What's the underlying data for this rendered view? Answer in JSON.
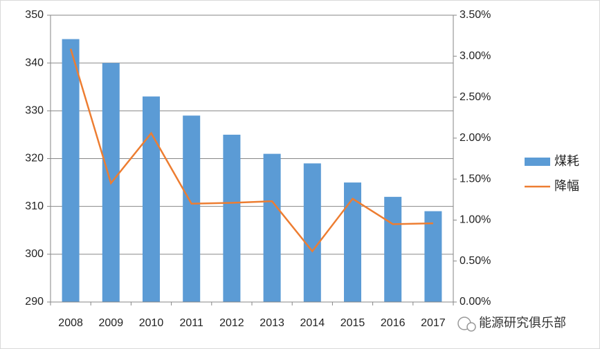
{
  "chart_data": {
    "type": "bar_line",
    "categories": [
      "2008",
      "2009",
      "2010",
      "2011",
      "2012",
      "2013",
      "2014",
      "2015",
      "2016",
      "2017"
    ],
    "series": [
      {
        "name": "煤耗",
        "type": "bar",
        "color": "#5b9bd5",
        "values": [
          345,
          340,
          333,
          329,
          325,
          321,
          319,
          315,
          312,
          309
        ]
      },
      {
        "name": "降幅",
        "type": "line",
        "axis": "y2",
        "color": "#ed7d31",
        "values": [
          3.09,
          1.45,
          2.06,
          1.2,
          1.21,
          1.23,
          0.62,
          1.26,
          0.95,
          0.96
        ]
      }
    ],
    "ylim": [
      290,
      350
    ],
    "yticks": [
      290,
      300,
      310,
      320,
      330,
      340,
      350
    ],
    "y2lim": [
      0,
      3.5
    ],
    "y2ticks": [
      {
        "value": 0,
        "label": "0.00%"
      },
      {
        "value": 0.5,
        "label": "0.50%"
      },
      {
        "value": 1,
        "label": "1.00%"
      },
      {
        "value": 1.5,
        "label": "1.50%"
      },
      {
        "value": 2,
        "label": "2.00%"
      },
      {
        "value": 2.5,
        "label": "2.50%"
      },
      {
        "value": 3,
        "label": "3.00%"
      },
      {
        "value": 3.5,
        "label": "3.50%"
      }
    ],
    "grid": true,
    "legend": "right"
  },
  "watermark": "能源研究俱乐部"
}
